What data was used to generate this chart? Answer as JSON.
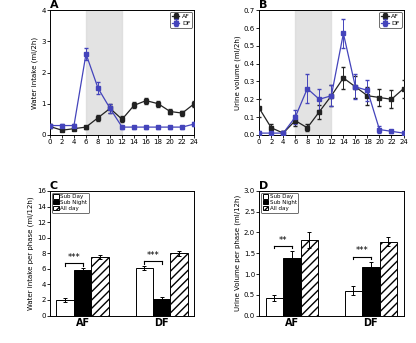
{
  "panel_A": {
    "title": "A",
    "ylabel": "Water intake (ml/2h)",
    "ylim": [
      0,
      4
    ],
    "yticks": [
      0,
      1,
      2,
      3,
      4
    ],
    "xticks": [
      0,
      2,
      4,
      6,
      8,
      10,
      12,
      14,
      16,
      18,
      20,
      22,
      24
    ],
    "shade_start": 6,
    "shade_end": 12,
    "AF_x": [
      0,
      2,
      4,
      6,
      8,
      10,
      12,
      14,
      16,
      18,
      20,
      22,
      24
    ],
    "AF_y": [
      0.27,
      0.15,
      0.2,
      0.25,
      0.55,
      0.85,
      0.5,
      0.95,
      1.1,
      1.0,
      0.75,
      0.7,
      1.0
    ],
    "AF_err": [
      0.06,
      0.04,
      0.04,
      0.05,
      0.1,
      0.15,
      0.1,
      0.1,
      0.1,
      0.1,
      0.08,
      0.08,
      0.1
    ],
    "DF_x": [
      0,
      2,
      4,
      6,
      8,
      10,
      12,
      14,
      16,
      18,
      20,
      22,
      24
    ],
    "DF_y": [
      0.3,
      0.3,
      0.3,
      2.6,
      1.5,
      0.85,
      0.25,
      0.25,
      0.25,
      0.25,
      0.25,
      0.25,
      0.35
    ],
    "DF_err": [
      0.05,
      0.05,
      0.05,
      0.18,
      0.2,
      0.15,
      0.05,
      0.05,
      0.05,
      0.05,
      0.05,
      0.05,
      0.05
    ],
    "AF_color": "#222222",
    "DF_color": "#4444bb",
    "AF_marker": "s",
    "DF_marker": "s"
  },
  "panel_B": {
    "title": "B",
    "ylabel": "Urine volume (ml/2h)",
    "ylim": [
      0,
      0.7
    ],
    "yticks": [
      0.0,
      0.1,
      0.2,
      0.3,
      0.4,
      0.5,
      0.6,
      0.7
    ],
    "xticks": [
      0,
      2,
      4,
      6,
      8,
      10,
      12,
      14,
      16,
      18,
      20,
      22,
      24
    ],
    "shade_start": 6,
    "shade_end": 12,
    "AF_x": [
      0,
      2,
      4,
      6,
      8,
      10,
      12,
      14,
      16,
      18,
      20,
      22,
      24
    ],
    "AF_y": [
      0.15,
      0.04,
      0.01,
      0.08,
      0.04,
      0.13,
      0.22,
      0.32,
      0.27,
      0.22,
      0.21,
      0.2,
      0.26
    ],
    "AF_err": [
      0.05,
      0.02,
      0.01,
      0.03,
      0.02,
      0.04,
      0.06,
      0.06,
      0.06,
      0.05,
      0.05,
      0.05,
      0.05
    ],
    "DF_x": [
      0,
      2,
      4,
      6,
      8,
      10,
      12,
      14,
      16,
      18,
      20,
      22,
      24
    ],
    "DF_y": [
      0.01,
      0.01,
      0.01,
      0.1,
      0.26,
      0.2,
      0.22,
      0.57,
      0.27,
      0.25,
      0.03,
      0.02,
      0.01
    ],
    "DF_err": [
      0.01,
      0.01,
      0.01,
      0.04,
      0.08,
      0.06,
      0.06,
      0.08,
      0.07,
      0.06,
      0.02,
      0.01,
      0.01
    ],
    "AF_color": "#222222",
    "DF_color": "#4444bb",
    "AF_marker": "s",
    "DF_marker": "s"
  },
  "panel_C": {
    "title": "C",
    "ylabel": "Water intake per phase (ml/12h)",
    "ylim": [
      0,
      16
    ],
    "yticks": [
      0,
      2,
      4,
      6,
      8,
      10,
      12,
      14,
      16
    ],
    "groups": [
      "AF",
      "DF"
    ],
    "sub_day": [
      2.0,
      6.1
    ],
    "sub_night": [
      5.85,
      2.1
    ],
    "all_day": [
      7.55,
      8.0
    ],
    "sub_day_err": [
      0.25,
      0.25
    ],
    "sub_night_err": [
      0.25,
      0.25
    ],
    "all_day_err": [
      0.25,
      0.3
    ],
    "sig_AF": "***",
    "sig_DF": "***",
    "bar_width": 0.22
  },
  "panel_D": {
    "title": "D",
    "ylabel": "Urine Volume per phase (ml/12h)",
    "ylim": [
      0,
      3.0
    ],
    "yticks": [
      0.0,
      0.5,
      1.0,
      1.5,
      2.0,
      2.5,
      3.0
    ],
    "groups": [
      "AF",
      "DF"
    ],
    "sub_day": [
      0.42,
      0.6
    ],
    "sub_night": [
      1.38,
      1.18
    ],
    "all_day": [
      1.82,
      1.78
    ],
    "sub_day_err": [
      0.08,
      0.1
    ],
    "sub_night_err": [
      0.18,
      0.12
    ],
    "all_day_err": [
      0.2,
      0.1
    ],
    "sig_AF": "**",
    "sig_DF": "***",
    "bar_width": 0.22
  },
  "legend_labels": [
    "Sub Day",
    "Sub Night",
    "All day"
  ],
  "bar_colors": [
    "white",
    "black",
    "white"
  ],
  "bar_hatches": [
    "",
    "",
    "////"
  ],
  "shade_color": "#d8d8d8",
  "shade_alpha": 0.7
}
